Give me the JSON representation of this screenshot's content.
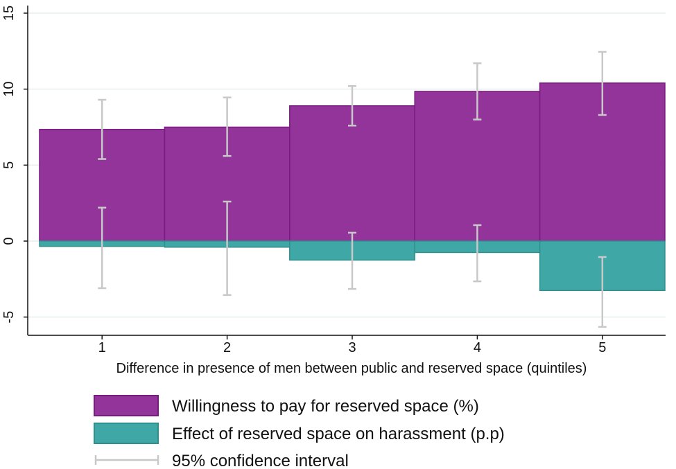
{
  "chart_data": {
    "type": "bar",
    "categories": [
      "1",
      "2",
      "3",
      "4",
      "5"
    ],
    "xlabel": "Difference in presence of men between public and reserved space (quintiles)",
    "ylabel": "",
    "ylim": [
      -6.2,
      15.5
    ],
    "yticks": [
      -5,
      0,
      5,
      10,
      15
    ],
    "grid": true,
    "legend_position": "bottom",
    "series": [
      {
        "name": "Willingness to pay for reserved space (%)",
        "color": "#93349A",
        "edge_color": "#7A1A80",
        "values": [
          7.35,
          7.5,
          8.9,
          9.85,
          10.4
        ],
        "ci_low": [
          5.4,
          5.6,
          7.6,
          8.0,
          8.3
        ],
        "ci_high": [
          9.3,
          9.45,
          10.2,
          11.7,
          12.45
        ]
      },
      {
        "name": "Effect of reserved space on harassment (p.p)",
        "color": "#3FA8A6",
        "edge_color": "#2F8F8D",
        "values": [
          -0.35,
          -0.4,
          -1.25,
          -0.75,
          -3.25
        ],
        "ci_low": [
          -3.1,
          -3.55,
          -3.15,
          -2.65,
          -5.65
        ],
        "ci_high": [
          2.2,
          2.6,
          0.55,
          1.05,
          -1.05
        ]
      }
    ],
    "ci_legend_label": "95% confidence interval",
    "ci_color": "#C8C8C8"
  }
}
